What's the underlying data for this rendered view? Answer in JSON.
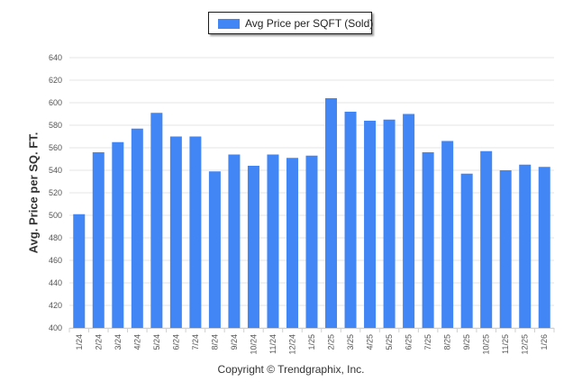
{
  "chart_data": {
    "type": "bar",
    "title": "",
    "xlabel": "",
    "ylabel": "Avg. Price per SQ. FT.",
    "ylim": [
      400,
      640
    ],
    "yticks": [
      400,
      420,
      440,
      460,
      480,
      500,
      520,
      540,
      560,
      580,
      600,
      620,
      640
    ],
    "grid": true,
    "legend": {
      "position": "top-center",
      "entries": [
        "Avg Price per SQFT (Sold)"
      ]
    },
    "categories": [
      "1/24",
      "2/24",
      "3/24",
      "4/24",
      "5/24",
      "6/24",
      "7/24",
      "8/24",
      "9/24",
      "10/24",
      "11/24",
      "12/24",
      "1/25",
      "2/25",
      "3/25",
      "4/25",
      "5/25",
      "6/25",
      "7/25",
      "8/25",
      "9/25",
      "10/25",
      "11/25",
      "12/25",
      "1/26"
    ],
    "series": [
      {
        "name": "Avg Price per SQFT (Sold)",
        "color": "#4285f4",
        "values": [
          501,
          556,
          565,
          577,
          591,
          570,
          570,
          539,
          554,
          544,
          554,
          551,
          553,
          604,
          592,
          584,
          585,
          590,
          556,
          566,
          537,
          557,
          540,
          545,
          543
        ]
      }
    ]
  },
  "footer": {
    "copyright": "Copyright © Trendgraphix, Inc."
  }
}
